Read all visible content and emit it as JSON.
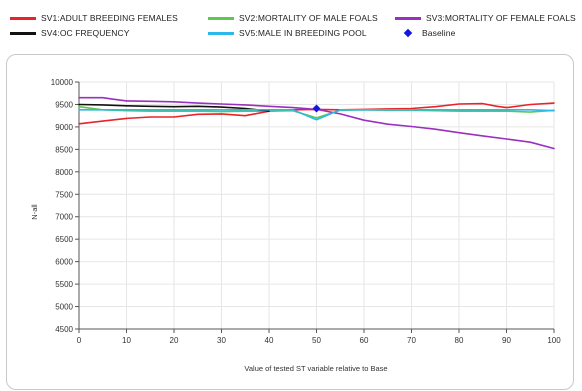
{
  "chart_data": {
    "type": "line",
    "title": "",
    "xlabel": "Value of tested ST variable relative to Base",
    "ylabel": "N-all",
    "xlim": [
      0,
      100
    ],
    "ylim": [
      4500,
      10000
    ],
    "x_ticks": [
      0,
      10,
      20,
      30,
      40,
      50,
      60,
      70,
      80,
      90,
      100
    ],
    "y_ticks": [
      4500,
      5000,
      5500,
      6000,
      6500,
      7000,
      7500,
      8000,
      8500,
      9000,
      9500,
      10000
    ],
    "legend_position": "top",
    "grid": true,
    "series": [
      {
        "name": "SV1:ADULT BREEDING FEMALES",
        "color": "#e8232a",
        "x": [
          0,
          5,
          10,
          15,
          20,
          25,
          30,
          35,
          40,
          45,
          50,
          55,
          60,
          65,
          70,
          75,
          80,
          85,
          88,
          90,
          95,
          100
        ],
        "y": [
          9070,
          9130,
          9190,
          9220,
          9220,
          9280,
          9290,
          9250,
          9350,
          9380,
          9390,
          9380,
          9390,
          9400,
          9410,
          9450,
          9510,
          9520,
          9460,
          9430,
          9500,
          9530
        ]
      },
      {
        "name": "SV2:MORTALITY OF MALE FOALS",
        "color": "#5dc850",
        "x": [
          0,
          5,
          10,
          15,
          20,
          25,
          30,
          35,
          40,
          45,
          50,
          55,
          60,
          65,
          70,
          75,
          80,
          85,
          90,
          95,
          100
        ],
        "y": [
          9450,
          9380,
          9360,
          9350,
          9350,
          9350,
          9340,
          9350,
          9350,
          9360,
          9200,
          9370,
          9380,
          9370,
          9370,
          9360,
          9350,
          9350,
          9350,
          9330,
          9370
        ]
      },
      {
        "name": "SV3:MORTALITY OF FEMALE FOALS",
        "color": "#9b2fbf",
        "x": [
          0,
          5,
          7,
          10,
          15,
          20,
          25,
          30,
          35,
          40,
          45,
          50,
          55,
          60,
          65,
          70,
          75,
          80,
          85,
          90,
          95,
          100
        ],
        "y": [
          9650,
          9650,
          9620,
          9580,
          9570,
          9560,
          9530,
          9510,
          9490,
          9460,
          9430,
          9390,
          9290,
          9150,
          9060,
          9010,
          8950,
          8870,
          8800,
          8730,
          8660,
          8520
        ]
      },
      {
        "name": "SV4:OC FREQUENCY",
        "color": "#111111",
        "x": [
          0,
          5,
          10,
          15,
          20,
          25,
          30,
          35,
          40
        ],
        "y": [
          9500,
          9490,
          9470,
          9460,
          9450,
          9460,
          9440,
          9410,
          9350
        ]
      },
      {
        "name": "SV5:MALE IN BREEDING POOL",
        "color": "#2cb8e8",
        "x": [
          0,
          5,
          10,
          15,
          20,
          25,
          30,
          35,
          40,
          45,
          50,
          55,
          60,
          65,
          70,
          75,
          80,
          85,
          90,
          95,
          100
        ],
        "y": [
          9380,
          9380,
          9380,
          9380,
          9380,
          9380,
          9380,
          9380,
          9380,
          9380,
          9160,
          9380,
          9380,
          9380,
          9380,
          9380,
          9380,
          9380,
          9380,
          9380,
          9360
        ]
      }
    ],
    "baseline": {
      "name": "Baseline",
      "color": "#1515e0",
      "x": 50,
      "y": 9410
    }
  }
}
